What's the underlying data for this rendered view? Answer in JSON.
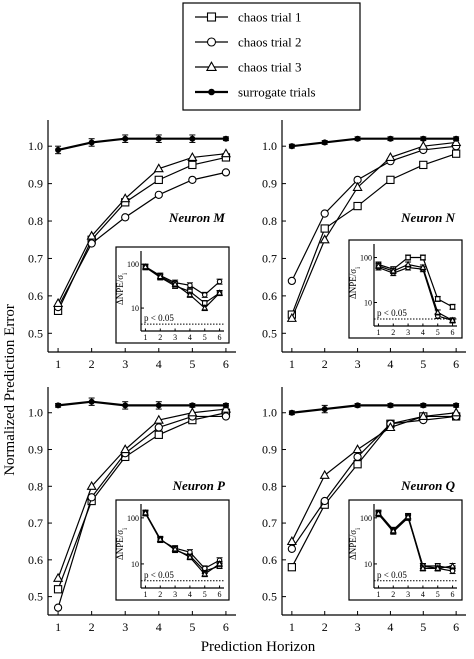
{
  "figure": {
    "xlabel": "Prediction Horizon",
    "ylabel": "Normalized Prediction Error",
    "legend": [
      {
        "label": "chaos trial 1",
        "marker": "square"
      },
      {
        "label": "chaos trial 2",
        "marker": "circle"
      },
      {
        "label": "chaos trial 3",
        "marker": "triangle"
      },
      {
        "label": "surrogate trials",
        "marker": "dot"
      }
    ],
    "inset_ylabel": "ΔNPE/σ",
    "inset_ylabel_sub": "i",
    "pval_label": "p < 0.05"
  },
  "chart_data": [
    {
      "type": "line",
      "title": "Neuron M",
      "x": [
        1,
        2,
        3,
        4,
        5,
        6
      ],
      "xlim": [
        0.7,
        6.3
      ],
      "ylim": [
        0.45,
        1.07
      ],
      "yticks": [
        0.5,
        0.6,
        0.7,
        0.8,
        0.9,
        1.0
      ],
      "series": [
        {
          "name": "chaos trial 1",
          "values": [
            0.56,
            0.75,
            0.85,
            0.91,
            0.95,
            0.97
          ]
        },
        {
          "name": "chaos trial 2",
          "values": [
            0.57,
            0.74,
            0.81,
            0.87,
            0.91,
            0.93
          ]
        },
        {
          "name": "chaos trial 3",
          "values": [
            0.58,
            0.76,
            0.86,
            0.94,
            0.97,
            0.98
          ]
        },
        {
          "name": "surrogate trials",
          "values": [
            0.99,
            1.01,
            1.02,
            1.02,
            1.02,
            1.02
          ],
          "err": [
            0.01,
            0.01,
            0.01,
            0.01,
            0.01,
            0.005
          ]
        }
      ],
      "inset": {
        "scale": "log",
        "ylim": [
          3,
          200
        ],
        "yticks": [
          10,
          100
        ],
        "x": [
          1,
          2,
          3,
          4,
          5,
          6
        ],
        "series": [
          {
            "name": "chaos trial 1",
            "values": [
              85,
              50,
              32,
              24,
              13,
              22
            ]
          },
          {
            "name": "chaos trial 2",
            "values": [
              88,
              55,
              38,
              33,
              20,
              40
            ]
          },
          {
            "name": "chaos trial 3",
            "values": [
              87,
              52,
              35,
              20,
              10,
              22
            ]
          }
        ],
        "significance": 4.3
      }
    },
    {
      "type": "line",
      "title": "Neuron N",
      "x": [
        1,
        2,
        3,
        4,
        5,
        6
      ],
      "xlim": [
        0.7,
        6.3
      ],
      "ylim": [
        0.45,
        1.07
      ],
      "yticks": [
        0.5,
        0.6,
        0.7,
        0.8,
        0.9,
        1.0
      ],
      "series": [
        {
          "name": "chaos trial 1",
          "values": [
            0.55,
            0.78,
            0.84,
            0.91,
            0.95,
            0.98
          ]
        },
        {
          "name": "chaos trial 2",
          "values": [
            0.64,
            0.82,
            0.91,
            0.96,
            0.99,
            1.0
          ]
        },
        {
          "name": "chaos trial 3",
          "values": [
            0.54,
            0.75,
            0.89,
            0.97,
            1.0,
            1.01
          ]
        },
        {
          "name": "surrogate trials",
          "values": [
            1.0,
            1.01,
            1.02,
            1.02,
            1.02,
            1.02
          ],
          "err": [
            0.005,
            0.005,
            0.005,
            0.005,
            0.005,
            0.005
          ]
        }
      ],
      "inset": {
        "scale": "log",
        "ylim": [
          3,
          200
        ],
        "yticks": [
          10,
          100
        ],
        "x": [
          1,
          2,
          3,
          4,
          5,
          6
        ],
        "series": [
          {
            "name": "chaos trial 1",
            "values": [
              70,
              55,
              100,
              100,
              12,
              8
            ]
          },
          {
            "name": "chaos trial 2",
            "values": [
              60,
              45,
              60,
              55,
              5,
              4
            ]
          },
          {
            "name": "chaos trial 3",
            "values": [
              65,
              50,
              70,
              60,
              6,
              4
            ]
          }
        ],
        "significance": 4.3
      }
    },
    {
      "type": "line",
      "title": "Neuron P",
      "x": [
        1,
        2,
        3,
        4,
        5,
        6
      ],
      "xlim": [
        0.7,
        6.3
      ],
      "ylim": [
        0.45,
        1.07
      ],
      "yticks": [
        0.5,
        0.6,
        0.7,
        0.8,
        0.9,
        1.0
      ],
      "series": [
        {
          "name": "chaos trial 1",
          "values": [
            0.52,
            0.76,
            0.88,
            0.94,
            0.98,
            1.0
          ]
        },
        {
          "name": "chaos trial 2",
          "values": [
            0.47,
            0.77,
            0.89,
            0.96,
            0.99,
            0.99
          ]
        },
        {
          "name": "chaos trial 3",
          "values": [
            0.55,
            0.8,
            0.9,
            0.98,
            1.0,
            1.01
          ]
        },
        {
          "name": "surrogate trials",
          "values": [
            1.02,
            1.03,
            1.02,
            1.02,
            1.02,
            1.02
          ],
          "err": [
            0.005,
            0.01,
            0.01,
            0.01,
            0.005,
            0.005
          ]
        }
      ],
      "inset": {
        "scale": "log",
        "ylim": [
          3,
          200
        ],
        "yticks": [
          10,
          100
        ],
        "x": [
          1,
          2,
          3,
          4,
          5,
          6
        ],
        "series": [
          {
            "name": "chaos trial 1",
            "values": [
              130,
              35,
              20,
              15,
              7,
              9
            ]
          },
          {
            "name": "chaos trial 2",
            "values": [
              125,
              33,
              22,
              18,
              8,
              12
            ]
          },
          {
            "name": "chaos trial 3",
            "values": [
              128,
              34,
              21,
              14,
              6,
              10
            ]
          }
        ],
        "significance": 4.3
      }
    },
    {
      "type": "line",
      "title": "Neuron Q",
      "x": [
        1,
        2,
        3,
        4,
        5,
        6
      ],
      "xlim": [
        0.7,
        6.3
      ],
      "ylim": [
        0.45,
        1.07
      ],
      "yticks": [
        0.5,
        0.6,
        0.7,
        0.8,
        0.9,
        1.0
      ],
      "series": [
        {
          "name": "chaos trial 1",
          "values": [
            0.58,
            0.75,
            0.86,
            0.97,
            0.99,
            0.99
          ]
        },
        {
          "name": "chaos trial 2",
          "values": [
            0.63,
            0.76,
            0.88,
            0.97,
            0.98,
            0.99
          ]
        },
        {
          "name": "chaos trial 3",
          "values": [
            0.65,
            0.83,
            0.9,
            0.96,
            0.99,
            1.0
          ]
        },
        {
          "name": "surrogate trials",
          "values": [
            1.0,
            1.01,
            1.02,
            1.02,
            1.02,
            1.02
          ],
          "err": [
            0.005,
            0.01,
            0.005,
            0.005,
            0.005,
            0.005
          ]
        }
      ],
      "inset": {
        "scale": "log",
        "ylim": [
          3,
          200
        ],
        "yticks": [
          10,
          100
        ],
        "x": [
          1,
          2,
          3,
          4,
          5,
          6
        ],
        "series": [
          {
            "name": "chaos trial 1",
            "values": [
              130,
              55,
              110,
              9,
              9,
              8
            ]
          },
          {
            "name": "chaos trial 2",
            "values": [
              120,
              50,
              100,
              9,
              8,
              7
            ]
          },
          {
            "name": "chaos trial 3",
            "values": [
              125,
              52,
              105,
              8,
              8,
              9
            ]
          }
        ],
        "significance": 4.3
      }
    }
  ]
}
